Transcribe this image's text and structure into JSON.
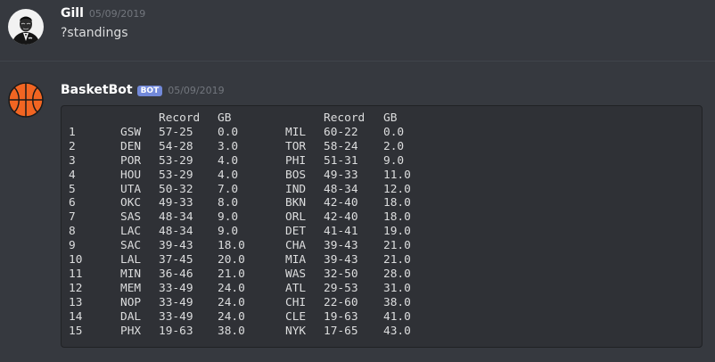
{
  "messages": [
    {
      "username": "Gill",
      "timestamp": "05/09/2019",
      "text": "?standings",
      "avatar_icon": "godfather-avatar-icon"
    },
    {
      "username": "BasketBot",
      "bot_tag": "BOT",
      "timestamp": "05/09/2019",
      "avatar_icon": "basketball-icon",
      "avatar_color": "#f26522",
      "standings": {
        "headers": {
          "record": "Record",
          "gb": "GB"
        },
        "rows": [
          {
            "rank": "1",
            "west": {
              "team": "GSW",
              "record": "57-25",
              "gb": "0.0"
            },
            "east": {
              "team": "MIL",
              "record": "60-22",
              "gb": "0.0"
            }
          },
          {
            "rank": "2",
            "west": {
              "team": "DEN",
              "record": "54-28",
              "gb": "3.0"
            },
            "east": {
              "team": "TOR",
              "record": "58-24",
              "gb": "2.0"
            }
          },
          {
            "rank": "3",
            "west": {
              "team": "POR",
              "record": "53-29",
              "gb": "4.0"
            },
            "east": {
              "team": "PHI",
              "record": "51-31",
              "gb": "9.0"
            }
          },
          {
            "rank": "4",
            "west": {
              "team": "HOU",
              "record": "53-29",
              "gb": "4.0"
            },
            "east": {
              "team": "BOS",
              "record": "49-33",
              "gb": "11.0"
            }
          },
          {
            "rank": "5",
            "west": {
              "team": "UTA",
              "record": "50-32",
              "gb": "7.0"
            },
            "east": {
              "team": "IND",
              "record": "48-34",
              "gb": "12.0"
            }
          },
          {
            "rank": "6",
            "west": {
              "team": "OKC",
              "record": "49-33",
              "gb": "8.0"
            },
            "east": {
              "team": "BKN",
              "record": "42-40",
              "gb": "18.0"
            }
          },
          {
            "rank": "7",
            "west": {
              "team": "SAS",
              "record": "48-34",
              "gb": "9.0"
            },
            "east": {
              "team": "ORL",
              "record": "42-40",
              "gb": "18.0"
            }
          },
          {
            "rank": "8",
            "west": {
              "team": "LAC",
              "record": "48-34",
              "gb": "9.0"
            },
            "east": {
              "team": "DET",
              "record": "41-41",
              "gb": "19.0"
            }
          },
          {
            "rank": "9",
            "west": {
              "team": "SAC",
              "record": "39-43",
              "gb": "18.0"
            },
            "east": {
              "team": "CHA",
              "record": "39-43",
              "gb": "21.0"
            }
          },
          {
            "rank": "10",
            "west": {
              "team": "LAL",
              "record": "37-45",
              "gb": "20.0"
            },
            "east": {
              "team": "MIA",
              "record": "39-43",
              "gb": "21.0"
            }
          },
          {
            "rank": "11",
            "west": {
              "team": "MIN",
              "record": "36-46",
              "gb": "21.0"
            },
            "east": {
              "team": "WAS",
              "record": "32-50",
              "gb": "28.0"
            }
          },
          {
            "rank": "12",
            "west": {
              "team": "MEM",
              "record": "33-49",
              "gb": "24.0"
            },
            "east": {
              "team": "ATL",
              "record": "29-53",
              "gb": "31.0"
            }
          },
          {
            "rank": "13",
            "west": {
              "team": "NOP",
              "record": "33-49",
              "gb": "24.0"
            },
            "east": {
              "team": "CHI",
              "record": "22-60",
              "gb": "38.0"
            }
          },
          {
            "rank": "14",
            "west": {
              "team": "DAL",
              "record": "33-49",
              "gb": "24.0"
            },
            "east": {
              "team": "CLE",
              "record": "19-63",
              "gb": "41.0"
            }
          },
          {
            "rank": "15",
            "west": {
              "team": "PHX",
              "record": "19-63",
              "gb": "38.0"
            },
            "east": {
              "team": "NYK",
              "record": "17-65",
              "gb": "43.0"
            }
          }
        ]
      }
    }
  ]
}
